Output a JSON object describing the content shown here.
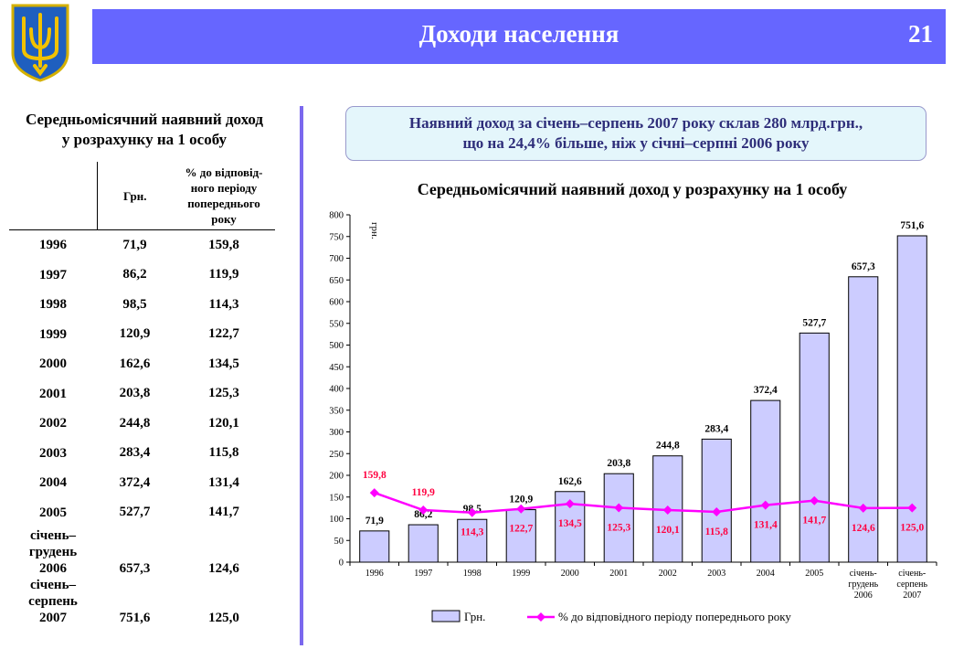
{
  "header": {
    "title": "Доходи населення",
    "page_number": "21"
  },
  "colors": {
    "header_bg": "#6666ff",
    "bar_fill": "#ccccff",
    "line_color": "#ff00ff",
    "percent_label": "#ff0040",
    "divider": "#7b68ee",
    "note_text": "#2e2e7a"
  },
  "left": {
    "title_line1": "Середньомісячний наявний доход",
    "title_line2": "у розрахунку на 1 особу",
    "col_grn": "Грн.",
    "col_pct_lines": [
      "% до відповід-",
      "ного періоду",
      "попереднього",
      "року"
    ],
    "rows": [
      {
        "year": "1996",
        "grn": "71,9",
        "pct": "159,8"
      },
      {
        "year": "1997",
        "grn": "86,2",
        "pct": "119,9"
      },
      {
        "year": "1998",
        "grn": "98,5",
        "pct": "114,3"
      },
      {
        "year": "1999",
        "grn": "120,9",
        "pct": "122,7"
      },
      {
        "year": "2000",
        "grn": "162,6",
        "pct": "134,5"
      },
      {
        "year": "2001",
        "grn": "203,8",
        "pct": "125,3"
      },
      {
        "year": "2002",
        "grn": "244,8",
        "pct": "120,1"
      },
      {
        "year": "2003",
        "grn": "283,4",
        "pct": "115,8"
      },
      {
        "year": "2004",
        "grn": "372,4",
        "pct": "131,4"
      },
      {
        "year": "2005",
        "grn": "527,7",
        "pct": "141,7"
      },
      {
        "year_lines": [
          "січень–",
          "грудень",
          "2006"
        ],
        "grn": "657,3",
        "pct": "124,6"
      },
      {
        "year_lines": [
          "січень–",
          "серпень",
          "2007"
        ],
        "grn": "751,6",
        "pct": "125,0"
      }
    ]
  },
  "note": {
    "line1": "Наявний доход за січень–серпень 2007 року склав 280 млрд.грн.,",
    "line2": "що на 24,4% більше, ніж у січні–серпні 2006 року"
  },
  "chart_title": "Середньомісячний наявний доход у розрахунку на 1 особу",
  "chart_data": {
    "type": "bar",
    "title": "Середньомісячний наявний доход у розрахунку на 1 особу",
    "ylabel": "грн.",
    "ylim": [
      0,
      800
    ],
    "ytick_step": 50,
    "categories": [
      [
        "1996"
      ],
      [
        "1997"
      ],
      [
        "1998"
      ],
      [
        "1999"
      ],
      [
        "2000"
      ],
      [
        "2001"
      ],
      [
        "2002"
      ],
      [
        "2003"
      ],
      [
        "2004"
      ],
      [
        "2005"
      ],
      [
        "січень-",
        "грудень",
        "2006"
      ],
      [
        "січень-",
        "серпень",
        "2007"
      ]
    ],
    "series": [
      {
        "name": "Грн.",
        "type": "bar",
        "values": [
          71.9,
          86.2,
          98.5,
          120.9,
          162.6,
          203.8,
          244.8,
          283.4,
          372.4,
          527.7,
          657.3,
          751.6
        ],
        "labels": [
          "71,9",
          "86,2",
          "98,5",
          "120,9",
          "162,6",
          "203,8",
          "244,8",
          "283,4",
          "372,4",
          "527,7",
          "657,3",
          "751,6"
        ]
      },
      {
        "name": "% до відповідного періоду попереднього року",
        "type": "line",
        "values": [
          159.8,
          119.9,
          114.3,
          122.7,
          134.5,
          125.3,
          120.1,
          115.8,
          131.4,
          141.7,
          124.6,
          125.0
        ],
        "labels": [
          "159,8",
          "119,9",
          "114,3",
          "122,7",
          "134,5",
          "125,3",
          "120,1",
          "115,8",
          "131,4",
          "141,7",
          "124,6",
          "125,0"
        ]
      }
    ],
    "legend_position": "bottom"
  }
}
